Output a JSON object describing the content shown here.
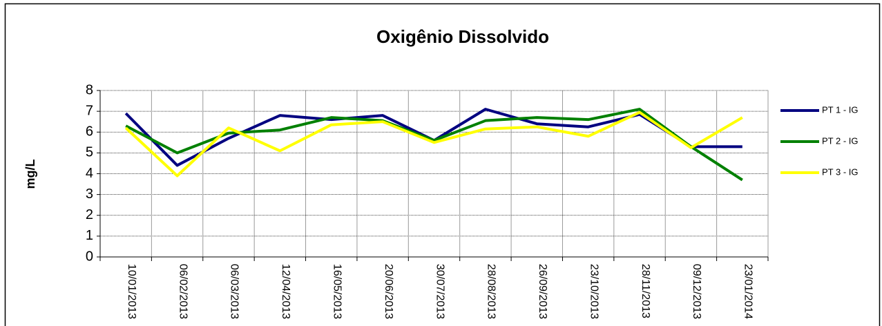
{
  "chart_data": {
    "type": "line",
    "title": "Oxigênio Dissolvido",
    "y_label": "mg/L",
    "categories": [
      "10/01/2013",
      "06/02/2013",
      "06/03/2013",
      "12/04/2013",
      "16/05/2013",
      "20/06/2013",
      "30/07/2013",
      "28/08/2013",
      "26/09/2013",
      "23/10/2013",
      "28/11/2013",
      "09/12/2013",
      "23/01/2014"
    ],
    "series": [
      {
        "name": "PT 1 - IG",
        "color": "#000080",
        "values": [
          6.9,
          4.4,
          5.7,
          6.8,
          6.6,
          6.8,
          5.6,
          7.1,
          6.4,
          6.25,
          6.85,
          5.3,
          5.3
        ]
      },
      {
        "name": "PT 2 - IG",
        "color": "#008000",
        "values": [
          6.3,
          5.0,
          5.95,
          6.1,
          6.7,
          6.55,
          5.6,
          6.55,
          6.7,
          6.6,
          7.1,
          5.3,
          3.7
        ]
      },
      {
        "name": "PT 3 - IG",
        "color": "#ffff00",
        "values": [
          6.2,
          3.9,
          6.2,
          5.1,
          6.35,
          6.5,
          5.5,
          6.15,
          6.25,
          5.8,
          6.95,
          5.25,
          6.7
        ]
      }
    ],
    "ylim": [
      0,
      8
    ],
    "yticks": [
      0,
      1,
      2,
      3,
      4,
      5,
      6,
      7,
      8
    ],
    "grid": true,
    "legend": "right"
  }
}
